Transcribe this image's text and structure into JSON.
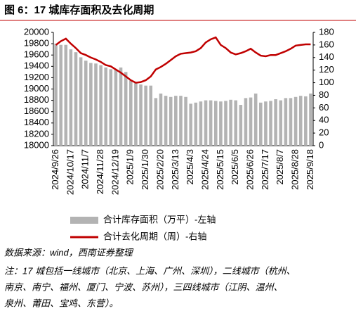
{
  "chart_data": {
    "type": "bar-line",
    "title": "图 6：17 城库存面积及去化周期",
    "categories": [
      "2024/9/26",
      null,
      null,
      "2024/10/17",
      null,
      null,
      "2024/11/7",
      null,
      null,
      "2024/11/28",
      null,
      null,
      "2024/12/19",
      null,
      null,
      "2025/1/9",
      null,
      null,
      "2025/1/30",
      null,
      null,
      "2025/2/20",
      null,
      null,
      "2025/3/13",
      null,
      null,
      "2025/4/3",
      null,
      null,
      "2025/4/24",
      null,
      null,
      "2025/5/15",
      null,
      null,
      "2025/6/5",
      null,
      null,
      "2025/6/26",
      null,
      null,
      "2025/7/17",
      null,
      null,
      "2025/8/7",
      null,
      null,
      "2025/8/28",
      null,
      null,
      "2025/9/18"
    ],
    "series": [
      {
        "name": "合计库存面积（万平）-左轴",
        "type": "bar",
        "color": "#b3b3b3",
        "values": [
          19800,
          19780,
          19780,
          19700,
          19650,
          19560,
          19500,
          19460,
          19450,
          19420,
          19380,
          19350,
          19350,
          19380,
          19300,
          19150,
          19120,
          19080,
          19060,
          19060,
          18840,
          18920,
          18880,
          18860,
          18880,
          18880,
          18860,
          18740,
          18760,
          18780,
          18800,
          18800,
          18790,
          18780,
          18790,
          18810,
          18800,
          18720,
          18840,
          18850,
          18920,
          18760,
          18780,
          18790,
          18820,
          18800,
          18840,
          18840,
          18860,
          18880,
          18870,
          18920
        ]
      },
      {
        "name": "合计去化周期（周）-右轴",
        "type": "line",
        "axis": "y2",
        "color": "#c00000",
        "values": [
          160,
          166,
          170,
          162,
          155,
          147,
          144,
          140,
          137,
          133,
          128,
          126,
          121,
          116,
          110,
          104,
          100,
          101,
          104,
          110,
          121,
          125,
          130,
          136,
          142,
          146,
          147,
          148,
          150,
          155,
          164,
          169,
          172,
          160,
          155,
          148,
          145,
          147,
          150,
          154,
          148,
          143,
          142,
          144,
          144,
          147,
          150,
          154,
          159,
          160,
          161,
          161
        ]
      }
    ],
    "ylim": [
      18000,
      20000
    ],
    "yticks": [
      18000,
      18200,
      18400,
      18600,
      18800,
      19000,
      19200,
      19400,
      19600,
      19800,
      20000
    ],
    "y2lim": [
      0,
      180
    ],
    "y2ticks": [
      0,
      20,
      40,
      60,
      80,
      100,
      120,
      140,
      160,
      180
    ],
    "source": "数据来源：wind，西南证券整理",
    "note": [
      "注：17 城包括一线城市（北京、上海、广州、深圳），二线城市（杭州、",
      "南京、南宁、福州、厦门、宁波、苏州），三四线城市（江阴、温州、",
      "泉州、莆田、宝鸡、东营）。"
    ]
  }
}
